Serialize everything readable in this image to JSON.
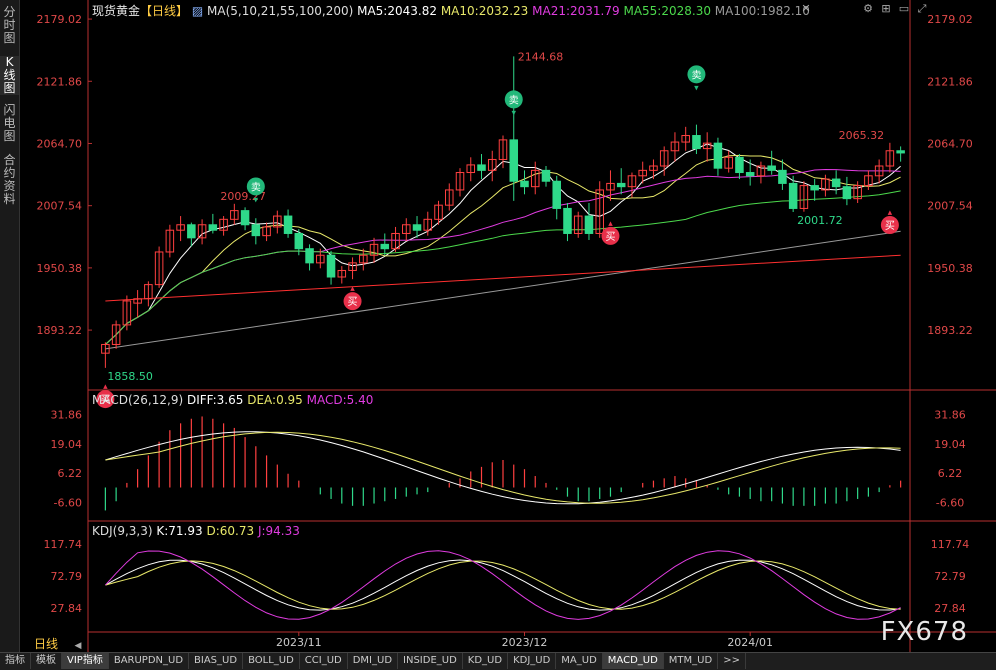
{
  "sidebar": {
    "tabs": [
      {
        "label": "分时图"
      },
      {
        "label": "K线图"
      },
      {
        "label": "闪电图"
      },
      {
        "label": "合约资料"
      }
    ]
  },
  "header": {
    "symbol": "现货黄金",
    "period": "【日线】",
    "ma_def": "MA(5,10,21,55,100,200)",
    "ma5": "MA5:2043.82",
    "ma10": "MA10:2032.23",
    "ma21": "MA21:2031.79",
    "ma55": "MA55:2028.30",
    "ma100": "MA100:1982.10"
  },
  "price_axis": {
    "ticks": [
      "2179.02",
      "2121.86",
      "2064.70",
      "2007.54",
      "1950.38",
      "1893.22"
    ]
  },
  "annotations": {
    "high": "2144.68",
    "high2": "2009.27",
    "high3": "2065.32",
    "low": "1858.50",
    "low2": "2001.72",
    "buy": "买",
    "sell": "卖"
  },
  "macd": {
    "header": "MACD(26,12,9)",
    "diff": "DIFF:3.65",
    "dea": "DEA:0.95",
    "macd": "MACD:5.40",
    "ticks": [
      "31.86",
      "19.04",
      "6.22",
      "-6.60"
    ]
  },
  "kdj": {
    "header": "KDJ(9,3,3)",
    "k": "K:71.93",
    "d": "D:60.73",
    "j": "J:94.33",
    "ticks": [
      "117.74",
      "72.79",
      "27.84"
    ]
  },
  "time_axis": {
    "period_label": "日线",
    "labels": [
      "2023/11",
      "2023/12",
      "2024/01"
    ]
  },
  "bottom_tabs": [
    "指标",
    "模板",
    "VIP指标",
    "BARUPDN_UD",
    "BIAS_UD",
    "BOLL_UD",
    "CCI_UD",
    "DMI_UD",
    "INSIDE_UD",
    "KD_UD",
    "KDJ_UD",
    "MA_UD",
    "MACD_UD",
    "MTM_UD",
    ">>"
  ],
  "watermark": "FX678",
  "colors": {
    "up": "#ff4040",
    "down": "#2fd98a",
    "ma5": "#ffffff",
    "ma10": "#e8e86a",
    "ma21": "#e03ce0",
    "ma55": "#4cd94c",
    "ma100": "#9a9a9a",
    "ma200": "#ff3030",
    "axis_text": "#e04848"
  },
  "chart_data": {
    "type": "candlestick",
    "ylim": [
      1840,
      2180
    ],
    "candles": [
      [
        1872,
        1882,
        1858.5,
        1880
      ],
      [
        1880,
        1902,
        1876,
        1898
      ],
      [
        1898,
        1925,
        1893,
        1920
      ],
      [
        1918,
        1930,
        1905,
        1922
      ],
      [
        1922,
        1938,
        1915,
        1935
      ],
      [
        1935,
        1970,
        1932,
        1965
      ],
      [
        1965,
        1990,
        1960,
        1985
      ],
      [
        1985,
        1998,
        1975,
        1990
      ],
      [
        1990,
        1992,
        1970,
        1978
      ],
      [
        1978,
        1995,
        1972,
        1990
      ],
      [
        1990,
        2000,
        1982,
        1985
      ],
      [
        1985,
        1998,
        1980,
        1995
      ],
      [
        1995,
        2009.27,
        1990,
        2003
      ],
      [
        2003,
        2006,
        1985,
        1990
      ],
      [
        1990,
        1996,
        1972,
        1980
      ],
      [
        1980,
        1992,
        1975,
        1988
      ],
      [
        1988,
        2003,
        1982,
        1998
      ],
      [
        1998,
        2004,
        1978,
        1982
      ],
      [
        1982,
        1986,
        1962,
        1968
      ],
      [
        1968,
        1972,
        1948,
        1955
      ],
      [
        1955,
        1968,
        1950,
        1962
      ],
      [
        1962,
        1966,
        1935,
        1942
      ],
      [
        1942,
        1952,
        1936,
        1948
      ],
      [
        1948,
        1960,
        1940,
        1955
      ],
      [
        1955,
        1968,
        1948,
        1962
      ],
      [
        1962,
        1978,
        1955,
        1972
      ],
      [
        1972,
        1982,
        1962,
        1968
      ],
      [
        1968,
        1988,
        1965,
        1982
      ],
      [
        1982,
        1996,
        1975,
        1990
      ],
      [
        1990,
        1998,
        1978,
        1985
      ],
      [
        1985,
        2002,
        1980,
        1995
      ],
      [
        1995,
        2012,
        1990,
        2008
      ],
      [
        2008,
        2028,
        2003,
        2022
      ],
      [
        2022,
        2042,
        2016,
        2038
      ],
      [
        2038,
        2052,
        2030,
        2045
      ],
      [
        2045,
        2055,
        2032,
        2040
      ],
      [
        2040,
        2058,
        2030,
        2050
      ],
      [
        2050,
        2072,
        2042,
        2068
      ],
      [
        2068,
        2144.68,
        2012,
        2030
      ],
      [
        2030,
        2040,
        2018,
        2025
      ],
      [
        2025,
        2048,
        2018,
        2040
      ],
      [
        2040,
        2044,
        2025,
        2030
      ],
      [
        2030,
        2035,
        1995,
        2005
      ],
      [
        2005,
        2010,
        1975,
        1982
      ],
      [
        1982,
        2002,
        1978,
        1998
      ],
      [
        1998,
        2010,
        1976,
        1982
      ],
      [
        1982,
        2030,
        1978,
        2022
      ],
      [
        2022,
        2040,
        2012,
        2028
      ],
      [
        2028,
        2042,
        2018,
        2025
      ],
      [
        2025,
        2038,
        2015,
        2035
      ],
      [
        2035,
        2048,
        2028,
        2040
      ],
      [
        2040,
        2050,
        2032,
        2044
      ],
      [
        2044,
        2062,
        2035,
        2058
      ],
      [
        2058,
        2075,
        2048,
        2066
      ],
      [
        2066,
        2080,
        2058,
        2072
      ],
      [
        2072,
        2082,
        2055,
        2060
      ],
      [
        2060,
        2075,
        2048,
        2065
      ],
      [
        2065,
        2070,
        2035,
        2042
      ],
      [
        2042,
        2058,
        2038,
        2052
      ],
      [
        2052,
        2055,
        2032,
        2038
      ],
      [
        2038,
        2050,
        2026,
        2035
      ],
      [
        2035,
        2048,
        2028,
        2044
      ],
      [
        2044,
        2058,
        2036,
        2040
      ],
      [
        2040,
        2050,
        2022,
        2028
      ],
      [
        2028,
        2035,
        2001.72,
        2005
      ],
      [
        2005,
        2030,
        2002,
        2026
      ],
      [
        2026,
        2032,
        2012,
        2022
      ],
      [
        2022,
        2036,
        2016,
        2032
      ],
      [
        2032,
        2040,
        2018,
        2025
      ],
      [
        2025,
        2034,
        2008,
        2014
      ],
      [
        2014,
        2030,
        2010,
        2026
      ],
      [
        2026,
        2040,
        2022,
        2035
      ],
      [
        2035,
        2050,
        2028,
        2044
      ],
      [
        2044,
        2065.32,
        2038,
        2058
      ],
      [
        2058,
        2062,
        2048,
        2056
      ]
    ],
    "macd_ticks": [
      31.86,
      19.04,
      6.22,
      -6.6
    ],
    "kdj_ticks": [
      117.74,
      72.79,
      27.84
    ]
  }
}
